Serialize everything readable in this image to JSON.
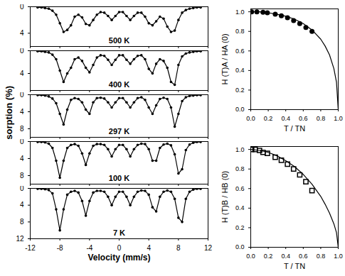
{
  "chart_data": [
    {
      "type": "scatter",
      "annotations": [
        "500 K"
      ],
      "color": "#000000",
      "marker": "circle",
      "line_style": "solid",
      "tick_labels": "y",
      "x": [
        -11,
        -10.5,
        -10,
        -9.5,
        -9,
        -8.5,
        -8,
        -7.5,
        -7,
        -6.5,
        -6,
        -5.5,
        -5,
        -4.5,
        -4,
        -3.5,
        -3,
        -2.5,
        -2,
        -1.5,
        -1,
        -0.5,
        0,
        0.5,
        1,
        1.5,
        2,
        2.5,
        3,
        3.5,
        4,
        4.5,
        5,
        5.5,
        6,
        6.5,
        7,
        7.5,
        8,
        8.5,
        9,
        9.5,
        10,
        10.5,
        11
      ],
      "values": [
        0.1,
        0.1,
        0.2,
        0.3,
        0.6,
        1.2,
        2.5,
        3.8,
        3.5,
        2.8,
        1.5,
        1.2,
        1.6,
        2.6,
        2.8,
        2,
        1.2,
        0.8,
        0.9,
        1.4,
        2,
        1.4,
        0.8,
        0.8,
        1.4,
        2,
        1.4,
        0.9,
        0.9,
        1.5,
        2.5,
        2.8,
        2.2,
        1.5,
        1.8,
        3,
        3.8,
        3.6,
        2,
        0.9,
        0.5,
        0.3,
        0.2,
        0.1,
        0.1
      ],
      "xlim": [
        -12,
        12
      ],
      "xticks": [
        -12,
        -8,
        -4,
        0,
        4,
        8,
        12
      ],
      "ylim": [
        0,
        6
      ],
      "yticks": [
        0,
        4
      ]
    },
    {
      "type": "scatter",
      "annotations": [
        "400 K"
      ],
      "color": "#000000",
      "marker": "circle",
      "line_style": "solid",
      "tick_labels": "y",
      "x": [
        -11,
        -10.5,
        -10,
        -9.5,
        -9,
        -8.5,
        -8,
        -7.5,
        -7,
        -6.5,
        -6,
        -5.5,
        -5,
        -4.5,
        -4,
        -3.5,
        -3,
        -2.5,
        -2,
        -1.5,
        -1,
        -0.5,
        0,
        0.5,
        1,
        1.5,
        2,
        2.5,
        3,
        3.5,
        4,
        4.5,
        5,
        5.5,
        6,
        6.5,
        7,
        7.5,
        8,
        8.5,
        9,
        9.5,
        10,
        10.5,
        11
      ],
      "values": [
        0.1,
        0.1,
        0.2,
        0.3,
        0.7,
        1.5,
        3.5,
        5.5,
        4,
        3,
        1.5,
        1.2,
        1.8,
        3,
        3.8,
        2.5,
        1.2,
        0.8,
        0.9,
        1.6,
        2.5,
        1.6,
        0.8,
        0.8,
        1.6,
        2.3,
        1.5,
        0.9,
        0.8,
        1.5,
        3.2,
        4,
        2.3,
        1.5,
        1.8,
        3,
        5.5,
        6,
        2.5,
        1,
        0.5,
        0.3,
        0.2,
        0.1,
        0.1
      ],
      "xlim": [
        -12,
        12
      ],
      "xticks": [
        -12,
        -8,
        -4,
        0,
        4,
        8,
        12
      ],
      "ylim": [
        0,
        7
      ],
      "yticks": [
        0,
        4
      ]
    },
    {
      "type": "scatter",
      "annotations": [
        "297 K"
      ],
      "ylabel": "Absorption (%)",
      "color": "#000000",
      "marker": "circle",
      "line_style": "solid",
      "tick_labels": "y",
      "x": [
        -11,
        -10.5,
        -10,
        -9.5,
        -9,
        -8.5,
        -8,
        -7.5,
        -7,
        -6.5,
        -6,
        -5.5,
        -5,
        -4.5,
        -4,
        -3.5,
        -3,
        -2.5,
        -2,
        -1.5,
        -1,
        -0.5,
        0,
        0.5,
        1,
        1.5,
        2,
        2.5,
        3,
        3.5,
        4,
        4.5,
        5,
        5.5,
        6,
        6.5,
        7,
        7.5,
        8,
        8.5,
        9,
        9.5,
        10,
        10.5,
        11
      ],
      "values": [
        0.1,
        0.1,
        0.2,
        0.4,
        0.9,
        2,
        4.5,
        7,
        3.5,
        1.2,
        0.8,
        1,
        1.8,
        3.5,
        4.5,
        1.8,
        0.8,
        0.7,
        0.9,
        1.8,
        3,
        1.8,
        0.8,
        0.8,
        1.8,
        3,
        1.8,
        0.8,
        0.6,
        1.2,
        3,
        4.5,
        2.5,
        1,
        0.7,
        1,
        3,
        7.5,
        4.5,
        1.5,
        0.6,
        0.3,
        0.2,
        0.1,
        0.1
      ],
      "xlim": [
        -12,
        12
      ],
      "xticks": [
        -12,
        -8,
        -4,
        0,
        4,
        8,
        12
      ],
      "ylim": [
        0,
        10
      ],
      "yticks": [
        0,
        4,
        8
      ]
    },
    {
      "type": "scatter",
      "annotations": [
        "100 K"
      ],
      "color": "#000000",
      "marker": "circle",
      "line_style": "solid",
      "tick_labels": "y",
      "x": [
        -11,
        -10.5,
        -10,
        -9.5,
        -9,
        -8.5,
        -8,
        -7.5,
        -7,
        -6.5,
        -6,
        -5.5,
        -5,
        -4.5,
        -4,
        -3.5,
        -3,
        -2.5,
        -2,
        -1.5,
        -1,
        -0.5,
        0,
        0.5,
        1,
        1.5,
        2,
        2.5,
        3,
        3.5,
        4,
        4.5,
        5,
        5.5,
        6,
        6.5,
        7,
        7.5,
        8,
        8.5,
        9,
        9.5,
        10,
        10.5,
        11
      ],
      "values": [
        0.1,
        0.1,
        0.2,
        0.5,
        1.5,
        4.5,
        8.5,
        4.5,
        1.5,
        0.8,
        0.6,
        1,
        2.8,
        5.5,
        2.8,
        1,
        0.6,
        0.6,
        0.8,
        1.8,
        3.5,
        1.8,
        0.8,
        0.8,
        1.8,
        3.5,
        1.8,
        0.8,
        0.5,
        0.6,
        1.8,
        4.5,
        4.5,
        1.5,
        0.7,
        0.5,
        0.9,
        3,
        7.5,
        6.5,
        2,
        0.7,
        0.3,
        0.1,
        0.1
      ],
      "xlim": [
        -12,
        12
      ],
      "xticks": [
        -12,
        -8,
        -4,
        0,
        4,
        8,
        12
      ],
      "ylim": [
        0,
        10
      ],
      "yticks": [
        0,
        4,
        8
      ]
    },
    {
      "type": "scatter",
      "annotations": [
        "7 K"
      ],
      "xlabel": "Velocity (mm/s)",
      "color": "#000000",
      "marker": "circle",
      "line_style": "solid",
      "x": [
        -11,
        -10.5,
        -10,
        -9.5,
        -9,
        -8.5,
        -8,
        -7.5,
        -7,
        -6.5,
        -6,
        -5.5,
        -5,
        -4.5,
        -4,
        -3.5,
        -3,
        -2.5,
        -2,
        -1.5,
        -1,
        -0.5,
        0,
        0.5,
        1,
        1.5,
        2,
        2.5,
        3,
        3.5,
        4,
        4.5,
        5,
        5.5,
        6,
        6.5,
        7,
        7.5,
        8,
        8.5,
        9,
        9.5,
        10,
        10.5,
        11
      ],
      "values": [
        0.1,
        0.1,
        0.2,
        0.4,
        1.2,
        5,
        10,
        5,
        1.5,
        0.8,
        0.6,
        1,
        3,
        6.5,
        3,
        1,
        0.6,
        0.6,
        0.8,
        2,
        4,
        2,
        0.8,
        0.8,
        2,
        4,
        2,
        0.8,
        0.5,
        0.6,
        1.5,
        4.5,
        5.5,
        2,
        0.8,
        0.5,
        0.8,
        2.5,
        7,
        8,
        2.5,
        0.8,
        0.3,
        0.1,
        0.1
      ],
      "xlim": [
        -12,
        12
      ],
      "xticks": [
        -12,
        -8,
        -4,
        0,
        4,
        8,
        12
      ],
      "ylim": [
        0,
        12
      ],
      "yticks": [
        0,
        4,
        8,
        12
      ]
    },
    {
      "type": "scatter",
      "xlabel": "T / TN",
      "ylabel": "H (T)A / HA (0)",
      "color": "#000000",
      "series": [
        {
          "type": "scatter",
          "marker": "circle",
          "x": [
            0.01,
            0.07,
            0.14,
            0.19,
            0.28,
            0.35,
            0.42,
            0.49,
            0.56,
            0.63,
            0.7
          ],
          "values": [
            1.0,
            1.0,
            0.995,
            0.99,
            0.975,
            0.96,
            0.94,
            0.91,
            0.88,
            0.84,
            0.8
          ]
        },
        {
          "type": "line",
          "line_style": "solid",
          "x": [
            0,
            0.1,
            0.2,
            0.3,
            0.4,
            0.5,
            0.6,
            0.7,
            0.8,
            0.85,
            0.9,
            0.95,
            0.98,
            1.0
          ],
          "values": [
            1.0,
            1.0,
            0.99,
            0.975,
            0.955,
            0.925,
            0.88,
            0.815,
            0.72,
            0.65,
            0.56,
            0.42,
            0.28,
            0
          ]
        }
      ],
      "xlim": [
        0,
        1
      ],
      "xticks": [
        {
          "value": 0,
          "label": "0.0"
        },
        {
          "value": 0.2,
          "label": "0.2"
        },
        {
          "value": 0.4,
          "label": "0.4"
        },
        {
          "value": 0.6,
          "label": "0.6"
        },
        {
          "value": 0.8,
          "label": "0.8"
        },
        {
          "value": 1,
          "label": "1.0"
        }
      ],
      "ylim": [
        0,
        1.03
      ],
      "yticks": [
        {
          "value": 0,
          "label": "0.0"
        },
        {
          "value": 0.2,
          "label": "0.2"
        },
        {
          "value": 0.4,
          "label": "0.4"
        },
        {
          "value": 0.6,
          "label": "0.6"
        },
        {
          "value": 0.8,
          "label": "0.8"
        },
        {
          "value": 1,
          "label": "1.0"
        }
      ]
    },
    {
      "type": "scatter",
      "xlabel": "T / TN",
      "ylabel": "H (T)B / HB (0)",
      "color": "#000000",
      "series": [
        {
          "type": "scatter",
          "marker": "open_square",
          "x": [
            0.01,
            0.05,
            0.1,
            0.14,
            0.19,
            0.28,
            0.35,
            0.42,
            0.49,
            0.56,
            0.63,
            0.7
          ],
          "values": [
            1.0,
            1.0,
            0.99,
            0.97,
            0.96,
            0.92,
            0.89,
            0.85,
            0.8,
            0.74,
            0.67,
            0.58
          ]
        },
        {
          "type": "line",
          "line_style": "solid",
          "x": [
            0,
            0.1,
            0.2,
            0.3,
            0.4,
            0.5,
            0.6,
            0.7,
            0.8,
            0.85,
            0.9,
            0.95,
            0.98,
            1.0
          ],
          "values": [
            1.0,
            0.99,
            0.97,
            0.935,
            0.885,
            0.825,
            0.745,
            0.645,
            0.52,
            0.44,
            0.35,
            0.24,
            0.15,
            0
          ]
        }
      ],
      "xlim": [
        0,
        1
      ],
      "xticks": [
        {
          "value": 0,
          "label": "0.0"
        },
        {
          "value": 0.2,
          "label": "0.2"
        },
        {
          "value": 0.4,
          "label": "0.4"
        },
        {
          "value": 0.6,
          "label": "0.6"
        },
        {
          "value": 0.8,
          "label": "0.8"
        },
        {
          "value": 1,
          "label": "1.0"
        }
      ],
      "ylim": [
        0,
        1.03
      ],
      "yticks": [
        {
          "value": 0,
          "label": "0.0"
        },
        {
          "value": 0.2,
          "label": "0.2"
        },
        {
          "value": 0.4,
          "label": "0.4"
        },
        {
          "value": 0.6,
          "label": "0.6"
        },
        {
          "value": 0.8,
          "label": "0.8"
        },
        {
          "value": 1,
          "label": "1.0"
        }
      ]
    }
  ]
}
